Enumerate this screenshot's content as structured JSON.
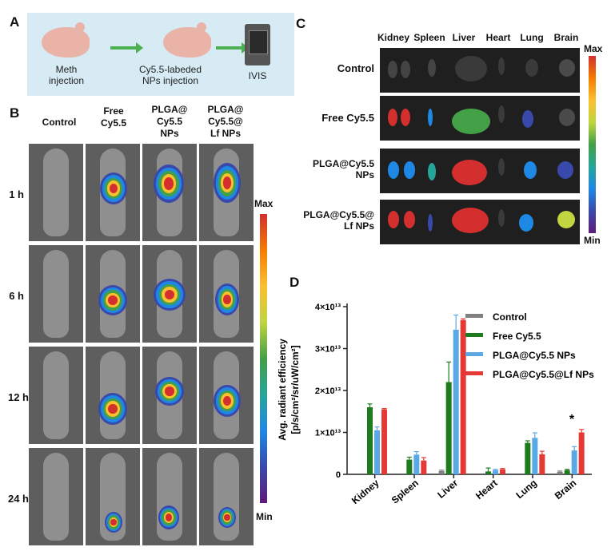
{
  "panels": {
    "a": "A",
    "b": "B",
    "c": "C",
    "d": "D"
  },
  "schematic": {
    "step1": "Meth\ninjection",
    "step2": "Cy5.5-labeded\nNPs injection",
    "step3": "IVIS"
  },
  "panel_b": {
    "columns": [
      "Control",
      "Free\nCy5.5",
      "PLGA@\nCy5.5\nNPs",
      "PLGA@\nCy5.5@\nLf NPs"
    ],
    "rows": [
      "1 h",
      "6 h",
      "12 h",
      "24 h"
    ],
    "scale_max": "Max",
    "scale_min": "Min"
  },
  "panel_c": {
    "organs": [
      "Kidney",
      "Spleen",
      "Liver",
      "Heart",
      "Lung",
      "Brain"
    ],
    "groups": [
      "Control",
      "Free Cy5.5",
      "PLGA@Cy5.5\nNPs",
      "PLGA@Cy5.5@\nLf NPs"
    ],
    "scale_max": "Max",
    "scale_min": "Min"
  },
  "colors": {
    "control": "#808080",
    "free": "#1e7b1e",
    "plga": "#5aa9e6",
    "plga_lf": "#e53935"
  },
  "chart_data": {
    "type": "bar",
    "categories": [
      "Kidney",
      "Spleen",
      "Liver",
      "Heart",
      "Lung",
      "Brain"
    ],
    "ylabel_line1": "Avg. radiant efficiency",
    "ylabel_line2": "[p/s/cm²/sr/uW/cm²]",
    "yticks": [
      "0",
      "1×10¹³",
      "2×10¹³",
      "3×10¹³",
      "4×10¹³"
    ],
    "ylim": [
      0,
      40000000000000.0
    ],
    "legend_position": "top-right",
    "annotation": "*",
    "series": [
      {
        "name": "Control",
        "values": [
          0,
          0,
          800000000000.0,
          0,
          0,
          600000000000.0
        ],
        "errors": [
          0,
          0,
          200000000000.0,
          0,
          0,
          200000000000.0
        ]
      },
      {
        "name": "Free Cy5.5",
        "values": [
          16000000000000.0,
          3500000000000.0,
          22000000000000.0,
          700000000000.0,
          7500000000000.0,
          1000000000000.0
        ],
        "errors": [
          800000000000.0,
          600000000000.0,
          4800000000000.0,
          800000000000.0,
          500000000000.0,
          200000000000.0
        ]
      },
      {
        "name": "PLGA@Cy5.5 NPs",
        "values": [
          10500000000000.0,
          4700000000000.0,
          34500000000000.0,
          1000000000000.0,
          8700000000000.0,
          5700000000000.0
        ],
        "errors": [
          800000000000.0,
          700000000000.0,
          3500000000000.0,
          200000000000.0,
          1200000000000.0,
          900000000000.0
        ]
      },
      {
        "name": "PLGA@Cy5.5@Lf NPs",
        "values": [
          15500000000000.0,
          3300000000000.0,
          36800000000000.0,
          1200000000000.0,
          4800000000000.0,
          10000000000000.0
        ],
        "errors": [
          200000000000.0,
          700000000000.0,
          300000000000.0,
          200000000000.0,
          700000000000.0,
          700000000000.0
        ]
      }
    ]
  }
}
